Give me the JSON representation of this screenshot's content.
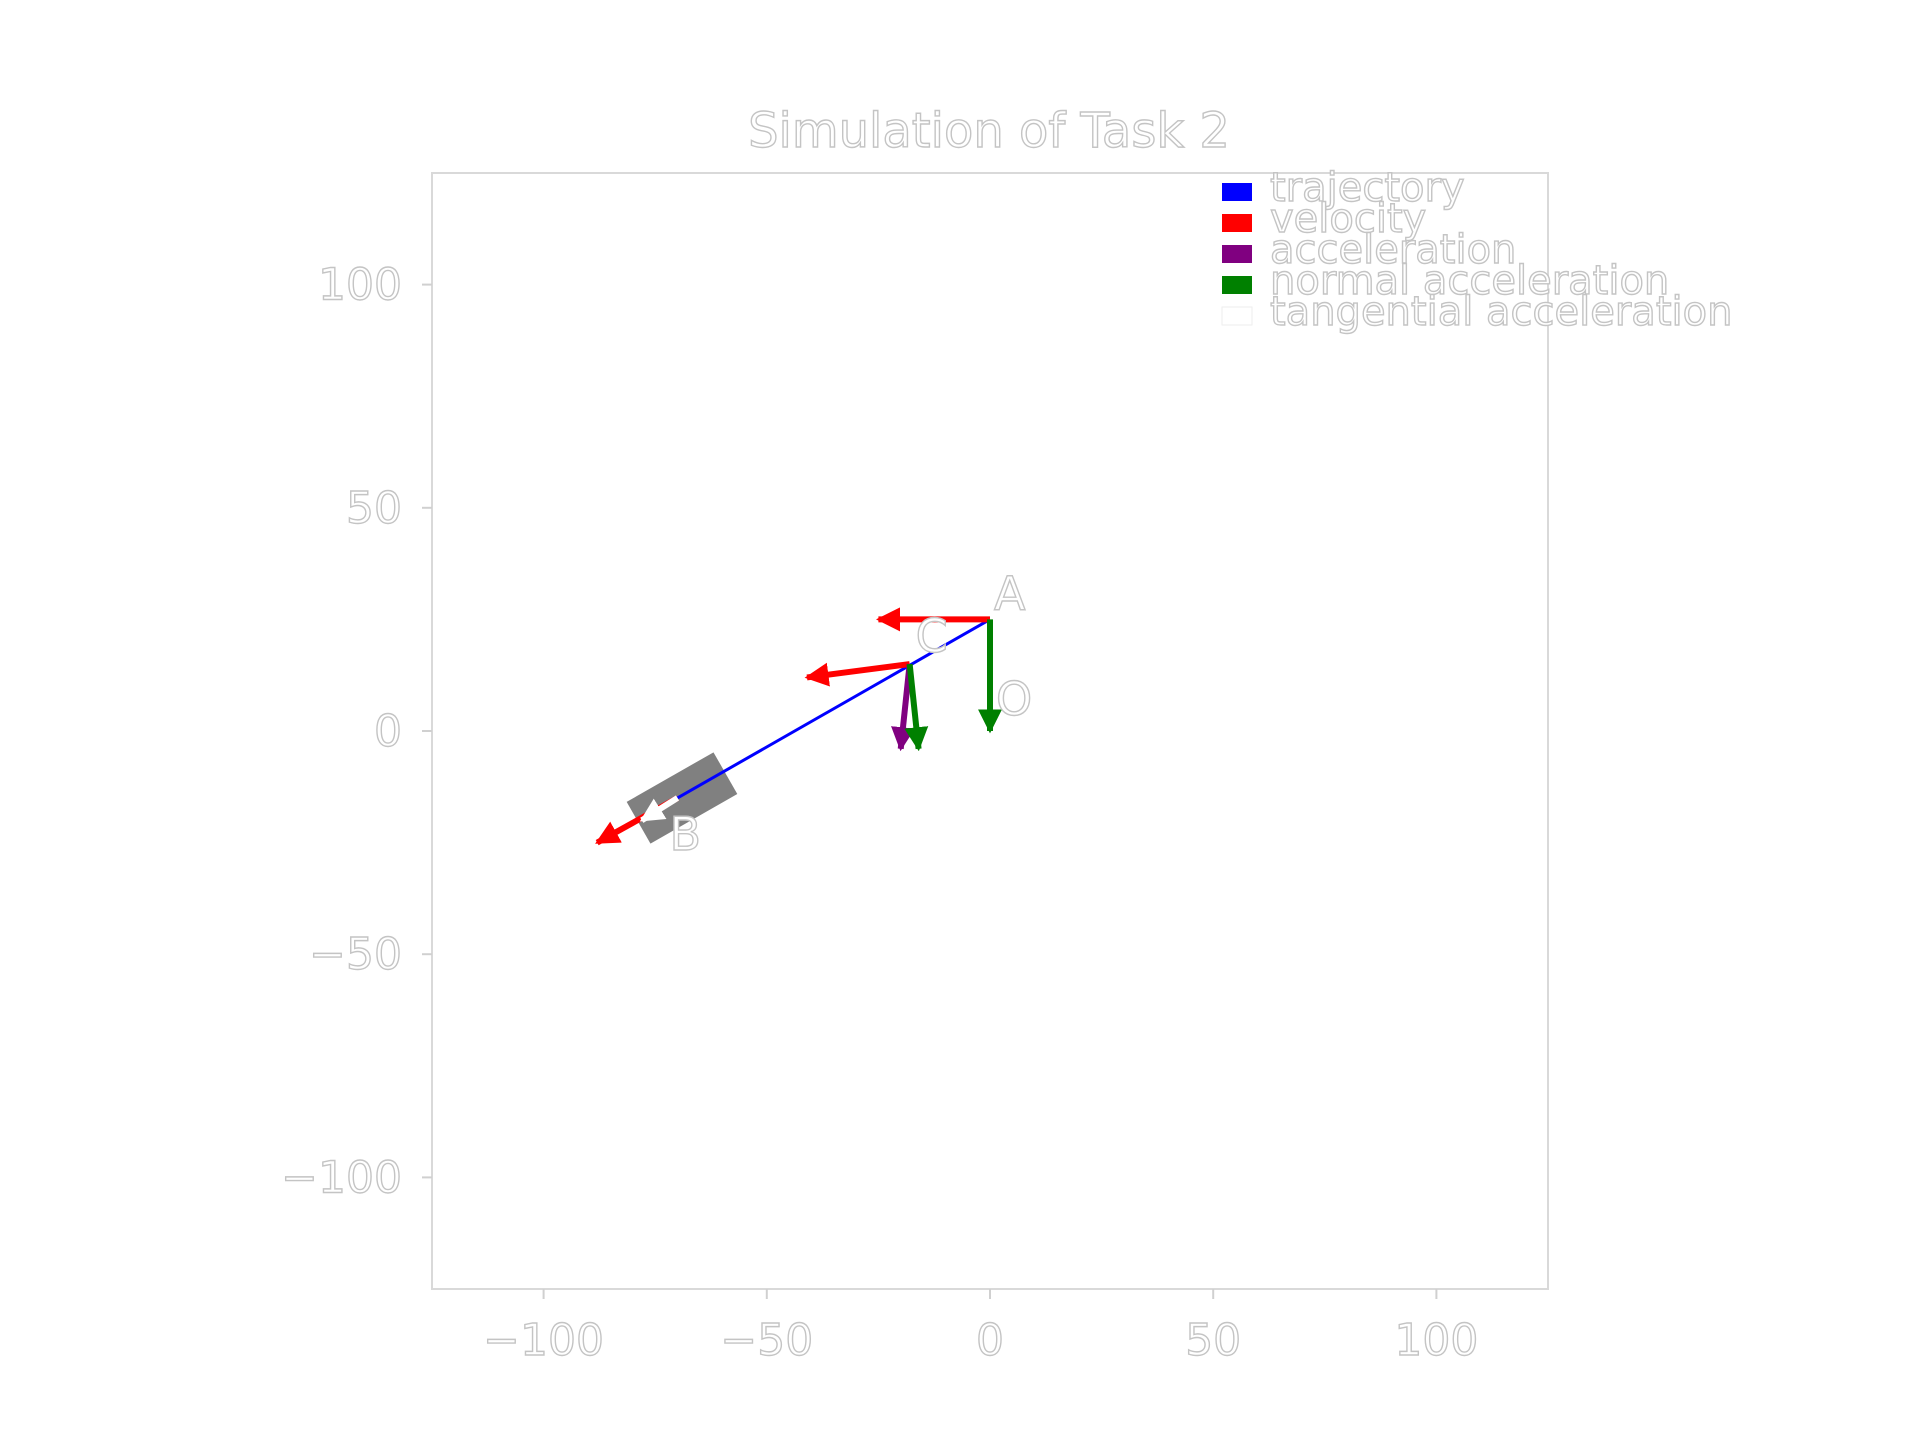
{
  "chart_data": {
    "type": "line",
    "title": "Simulation of Task 2",
    "xlabel": "",
    "ylabel": "",
    "xlim": [
      -125,
      125
    ],
    "ylim": [
      -125,
      125
    ],
    "xticks": [
      -100,
      -50,
      0,
      50,
      100
    ],
    "yticks": [
      -100,
      -50,
      0,
      50,
      100
    ],
    "xtick_labels": [
      "−100",
      "−50",
      "0",
      "50",
      "100"
    ],
    "ytick_labels": [
      "−100",
      "−50",
      "0",
      "50",
      "100"
    ],
    "grid": false,
    "legend_position": "top-right",
    "legend": [
      {
        "label": "trajectory",
        "color": "#0000ff"
      },
      {
        "label": "velocity",
        "color": "#ff0000"
      },
      {
        "label": "acceleration",
        "color": "#800080"
      },
      {
        "label": "normal acceleration",
        "color": "#008000"
      },
      {
        "label": "tangential acceleration",
        "color": "#ffffff"
      }
    ],
    "series": [
      {
        "name": "trajectory",
        "points": [
          [
            0,
            25
          ],
          [
            -70,
            -15
          ]
        ],
        "color": "#0000ff"
      }
    ],
    "points": [
      {
        "label": "A",
        "x": 0,
        "y": 25
      },
      {
        "label": "B",
        "x": -70,
        "y": -15
      },
      {
        "label": "C",
        "x": -18,
        "y": 15
      },
      {
        "label": "O",
        "x": 0,
        "y": 0
      }
    ],
    "vectors": [
      {
        "kind": "velocity",
        "from": [
          0,
          25
        ],
        "to": [
          -25,
          25
        ],
        "color": "#ff0000"
      },
      {
        "kind": "normal acceleration",
        "from": [
          0,
          25
        ],
        "to": [
          0,
          0
        ],
        "color": "#008000"
      },
      {
        "kind": "velocity",
        "from": [
          -18,
          15
        ],
        "to": [
          -41,
          12
        ],
        "color": "#ff0000"
      },
      {
        "kind": "acceleration",
        "from": [
          -18,
          15
        ],
        "to": [
          -20,
          -4
        ],
        "color": "#800080"
      },
      {
        "kind": "normal acceleration",
        "from": [
          -18,
          15
        ],
        "to": [
          -16,
          -4
        ],
        "color": "#008000"
      },
      {
        "kind": "velocity",
        "from": [
          -70,
          -15
        ],
        "to": [
          -88,
          -25
        ],
        "color": "#ff0000"
      },
      {
        "kind": "tangential acceleration",
        "from": [
          -70,
          -15
        ],
        "to": [
          -78,
          -20
        ],
        "color": "#ffffff"
      }
    ],
    "marker": {
      "label": "body",
      "x": -69,
      "y": -15,
      "color": "#808080"
    }
  }
}
